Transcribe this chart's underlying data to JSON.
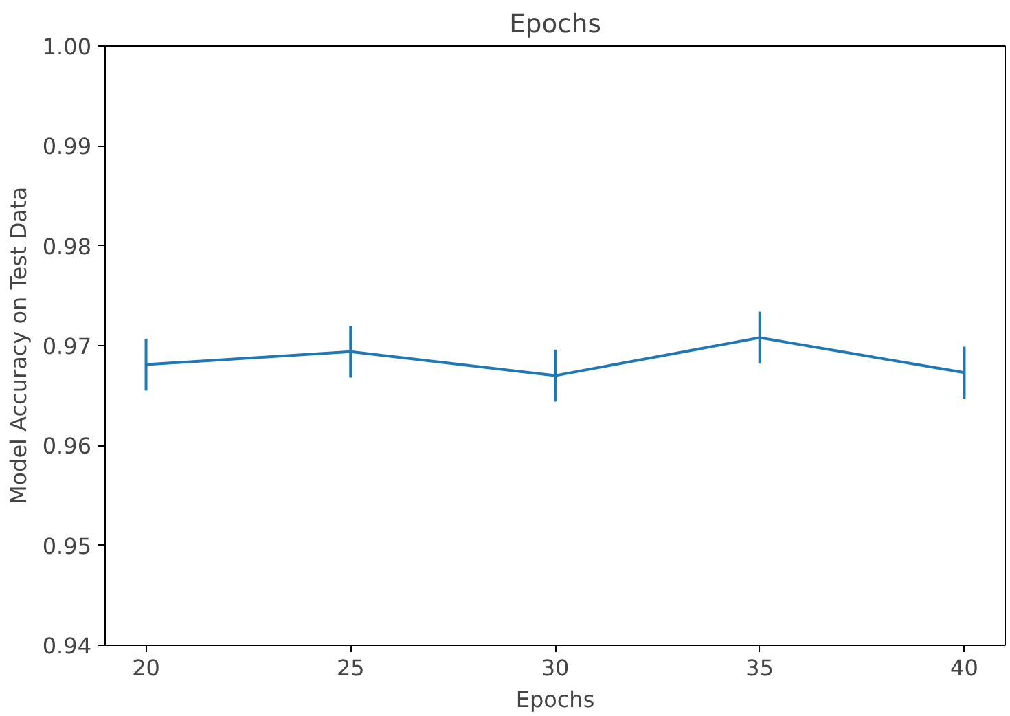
{
  "chart_data": {
    "type": "line",
    "title": "Epochs",
    "xlabel": "Epochs",
    "ylabel": "Model Accuracy on Test Data",
    "x": [
      20,
      25,
      30,
      35,
      40
    ],
    "series": [
      {
        "color": "#1f77b4",
        "values": [
          0.9681,
          0.9694,
          0.967,
          0.9708,
          0.9673
        ],
        "errors": [
          0.0026,
          0.0026,
          0.0026,
          0.0026,
          0.0026
        ]
      }
    ],
    "xlim": [
      19,
      41
    ],
    "ylim": [
      0.94,
      1.0
    ],
    "xticks": [
      20,
      25,
      30,
      35,
      40
    ],
    "yticks": [
      {
        "value": 0.94,
        "label": "0.94"
      },
      {
        "value": 0.95,
        "label": "0.95"
      },
      {
        "value": 0.96,
        "label": "0.96"
      },
      {
        "value": 0.97,
        "label": "0.97"
      },
      {
        "value": 0.98,
        "label": "0.98"
      },
      {
        "value": 0.99,
        "label": "0.99"
      },
      {
        "value": 1.0,
        "label": "1.00"
      }
    ],
    "grid": false
  }
}
